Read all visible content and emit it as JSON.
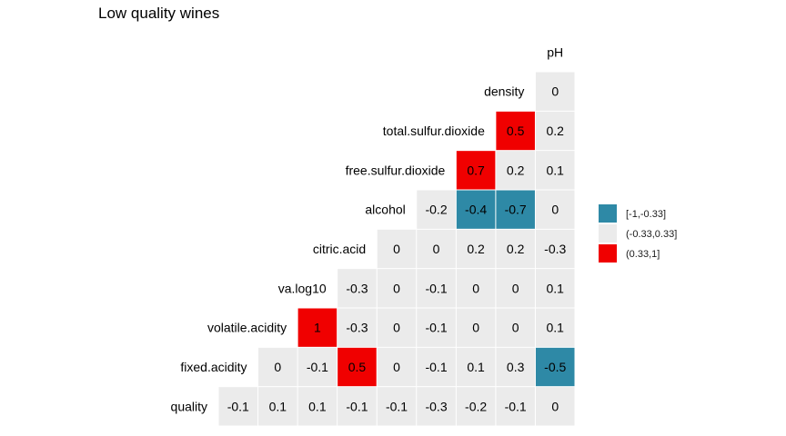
{
  "chart_data": {
    "type": "heatmap",
    "title": "Low quality wines",
    "variables": [
      "quality",
      "fixed.acidity",
      "volatile.acidity",
      "va.log10",
      "citric.acid",
      "alcohol",
      "free.sulfur.dioxide",
      "total.sulfur.dioxide",
      "density",
      "pH"
    ],
    "matrix": [
      [
        -0.1,
        0.1,
        0.1,
        -0.1,
        -0.1,
        -0.3,
        -0.2,
        -0.1,
        0
      ],
      [
        0,
        -0.1,
        0.5,
        0,
        -0.1,
        0.1,
        0.3,
        -0.5
      ],
      [
        1,
        -0.3,
        0,
        -0.1,
        0,
        0,
        0.1
      ],
      [
        -0.3,
        0,
        -0.1,
        0,
        0,
        0.1
      ],
      [
        0,
        0,
        0.2,
        0.2,
        -0.3
      ],
      [
        -0.2,
        -0.4,
        -0.7,
        0
      ],
      [
        0.7,
        0.2,
        0.1
      ],
      [
        0.5,
        0.2
      ],
      [
        0
      ]
    ],
    "matrix_note": "row i = variables[i]; row entries are correlations with variables[i+1] ... variables[9] in order",
    "legend": {
      "position": "right",
      "bins": [
        {
          "label": "[-1,-0.33]",
          "color": "#2e89a6"
        },
        {
          "label": "(-0.33,0.33]",
          "color": "#ebebeb"
        },
        {
          "label": "(0.33,1]",
          "color": "#f00000"
        }
      ]
    },
    "grid": false
  }
}
